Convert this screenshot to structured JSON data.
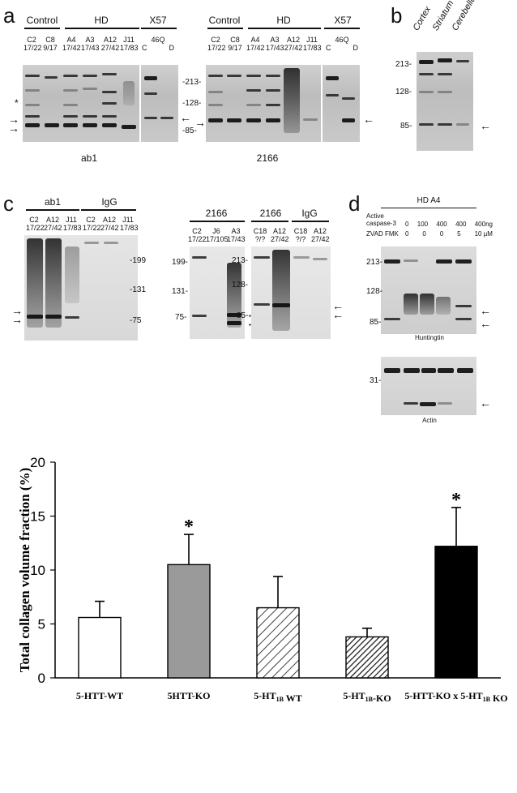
{
  "panel_a": {
    "letter": "a",
    "left_blot": {
      "groups": [
        "Control",
        "HD",
        "X57"
      ],
      "lanes": [
        {
          "name": "C2",
          "sub": "17/22"
        },
        {
          "name": "C8",
          "sub": "9/17"
        },
        {
          "name": "A4",
          "sub": "17/42"
        },
        {
          "name": "A3",
          "sub": "17/43"
        },
        {
          "name": "A12",
          "sub": "27/42"
        },
        {
          "name": "J11",
          "sub": "17/83"
        }
      ],
      "x57_label": "46Q",
      "x57_sub": [
        "C",
        "D"
      ],
      "caption": "ab1"
    },
    "markers": [
      "-213-",
      "-128-",
      "-85-"
    ],
    "star": "*",
    "right_blot": {
      "groups": [
        "Control",
        "HD",
        "X57"
      ],
      "lanes": [
        {
          "name": "C2",
          "sub": "17/22"
        },
        {
          "name": "C8",
          "sub": "9/17"
        },
        {
          "name": "A4",
          "sub": "17/42"
        },
        {
          "name": "A3",
          "sub": "17/43"
        },
        {
          "name": "A12",
          "sub": "27/42"
        },
        {
          "name": "J11",
          "sub": "17/83"
        }
      ],
      "x57_label": "46Q",
      "x57_sub": [
        "C",
        "D"
      ],
      "caption": "2166"
    }
  },
  "panel_b": {
    "letter": "b",
    "lanes": [
      "Cortex",
      "Striatum",
      "Cerebellum"
    ],
    "markers": [
      "213-",
      "128-",
      "85-"
    ]
  },
  "panel_c": {
    "letter": "c",
    "blot1": {
      "groups": [
        "ab1",
        "IgG"
      ],
      "lanes": [
        {
          "name": "C2",
          "sub": "17/22"
        },
        {
          "name": "A12",
          "sub": "27/42"
        },
        {
          "name": "J11",
          "sub": "17/83"
        },
        {
          "name": "C2",
          "sub": "17/22"
        },
        {
          "name": "A12",
          "sub": "27/42"
        },
        {
          "name": "J11",
          "sub": "17/83"
        }
      ],
      "markers": [
        "-199",
        "-131",
        "-75"
      ]
    },
    "blot2": {
      "group": "2166",
      "lanes": [
        {
          "name": "C2",
          "sub": "17/22"
        },
        {
          "name": "J6",
          "sub": "17/105"
        },
        {
          "name": "A3",
          "sub": "17/43"
        }
      ],
      "markers": [
        "199-",
        "131-",
        "75-"
      ]
    },
    "blot3": {
      "groups": [
        "2166",
        "IgG"
      ],
      "lanes": [
        {
          "name": "C18",
          "sub": "?/?"
        },
        {
          "name": "A12",
          "sub": "27/42"
        },
        {
          "name": "C18",
          "sub": "?/?"
        },
        {
          "name": "A12",
          "sub": "27/42"
        }
      ],
      "markers": [
        "213-",
        "128-",
        "85-"
      ]
    }
  },
  "panel_d": {
    "letter": "d",
    "group": "HD A4",
    "row1_label": "Active caspase-3",
    "row1_values": [
      "0",
      "100",
      "400",
      "400",
      "400ng"
    ],
    "row2_label": "ZVAD FMK",
    "row2_values": [
      "0",
      "0",
      "0",
      "5",
      "10 µM"
    ],
    "markers_top": [
      "213-",
      "128-",
      "85-"
    ],
    "caption_top": "Huntingtin",
    "markers_bottom": [
      "31-"
    ],
    "caption_bottom": "Actin"
  },
  "chart_data": {
    "type": "bar",
    "title": "",
    "xlabel": "",
    "ylabel": "Total collagen volume fraction (%)",
    "ylim": [
      0,
      20
    ],
    "yticks": [
      "0",
      "5",
      "10",
      "15",
      "20"
    ],
    "categories": [
      "5-HTT-WT",
      "5HTT-KO",
      "5-HT1B WT",
      "5-HT1B-KO",
      "5-HTT-KO x 5-HT1B KO"
    ],
    "values": [
      5.6,
      10.5,
      6.5,
      3.8,
      12.2
    ],
    "errors": [
      1.5,
      2.8,
      2.9,
      0.8,
      3.6
    ],
    "significance": [
      "",
      "*",
      "",
      "",
      "*"
    ],
    "fills": [
      "white",
      "#9a9a9a",
      "hatch-sparse",
      "hatch-dense",
      "#000000"
    ]
  }
}
